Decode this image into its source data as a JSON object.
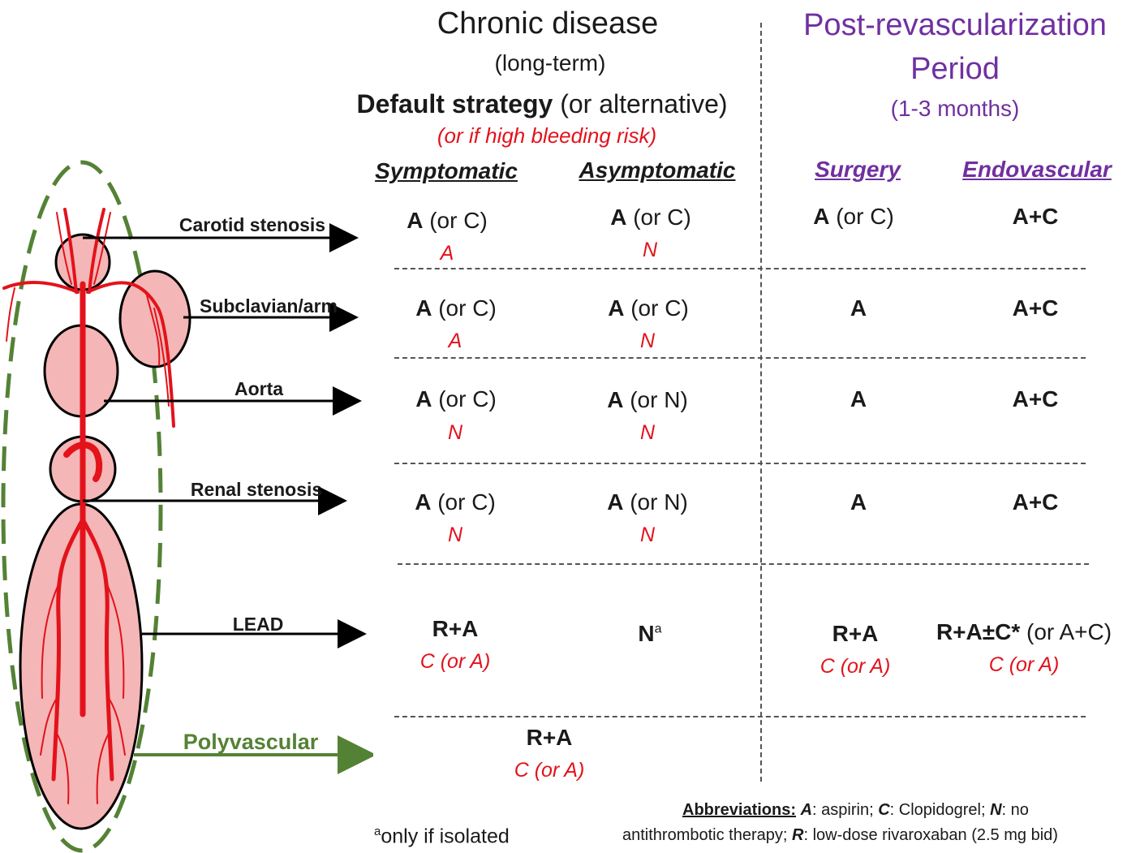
{
  "header": {
    "chronic_title": "Chronic disease",
    "chronic_sub": "(long-term)",
    "default_bold": "Default strategy",
    "default_alt": " (or alternative)",
    "bleeding": "(or if high bleeding risk)",
    "post_title_1": "Post-revascularization",
    "post_title_2": "Period",
    "post_sub": "(1-3 months)"
  },
  "columns": {
    "symptomatic": "Symptomatic",
    "asymptomatic": "Asymptomatic",
    "surgery": "Surgery",
    "endovascular": "Endovascular"
  },
  "regions": [
    {
      "label": "Carotid  stenosis"
    },
    {
      "label": "Subclavian/arm"
    },
    {
      "label": "Aorta"
    },
    {
      "label": "Renal stenosis"
    },
    {
      "label": "LEAD"
    },
    {
      "label": "Polyvascular"
    }
  ],
  "rows": [
    {
      "sym": {
        "bold": "A",
        "rest": " (or C)",
        "alt": "A"
      },
      "asym": {
        "bold": "A",
        "rest": " (or C)",
        "alt": "N"
      },
      "surg": {
        "bold": "A",
        "rest": " (or C)"
      },
      "endo": {
        "bold": "A+C",
        "rest": ""
      }
    },
    {
      "sym": {
        "bold": "A",
        "rest": " (or C)",
        "alt": "A"
      },
      "asym": {
        "bold": "A",
        "rest": " (or C)",
        "alt": "N"
      },
      "surg": {
        "bold": "A",
        "rest": ""
      },
      "endo": {
        "bold": "A+C",
        "rest": ""
      }
    },
    {
      "sym": {
        "bold": "A",
        "rest": " (or C)",
        "alt": "N"
      },
      "asym": {
        "bold": "A",
        "rest": " (or N)",
        "alt": "N"
      },
      "surg": {
        "bold": "A",
        "rest": ""
      },
      "endo": {
        "bold": "A+C",
        "rest": ""
      }
    },
    {
      "sym": {
        "bold": "A",
        "rest": " (or C)",
        "alt": "N"
      },
      "asym": {
        "bold": "A",
        "rest": " (or N)",
        "alt": "N"
      },
      "surg": {
        "bold": "A",
        "rest": ""
      },
      "endo": {
        "bold": "A+C",
        "rest": ""
      }
    },
    {
      "sym": {
        "bold": "R+A",
        "rest": "",
        "alt": "C (or A)"
      },
      "asym": {
        "bold": "N",
        "sup": "a"
      },
      "surg": {
        "bold": "R+A",
        "rest": "",
        "alt": "C (or A)"
      },
      "endo": {
        "bold": "R+A±C*",
        "rest": " (or A+C)",
        "alt": "C (or A)"
      }
    }
  ],
  "polyvascular": {
    "bold": "R+A",
    "alt": "C (or A)"
  },
  "footnote": {
    "sup": "a",
    "text": "only if isolated"
  },
  "abbreviations": {
    "title": "Abbreviations:",
    "items": [
      {
        "key": "A",
        "text": ": aspirin; "
      },
      {
        "key": "C",
        "text": ": Clopidogrel; "
      },
      {
        "key": "N",
        "text": ": no"
      }
    ],
    "line2_key": "R",
    "line2_prefix": "antithrombotic therapy; ",
    "line2_text": ": low-dose rivaroxaban (2.5 mg bid)"
  },
  "colors": {
    "red": "#e3121b",
    "purple": "#7030a0",
    "green": "#548235",
    "pink": "#f4b6b6",
    "artery": "#e3121b"
  }
}
